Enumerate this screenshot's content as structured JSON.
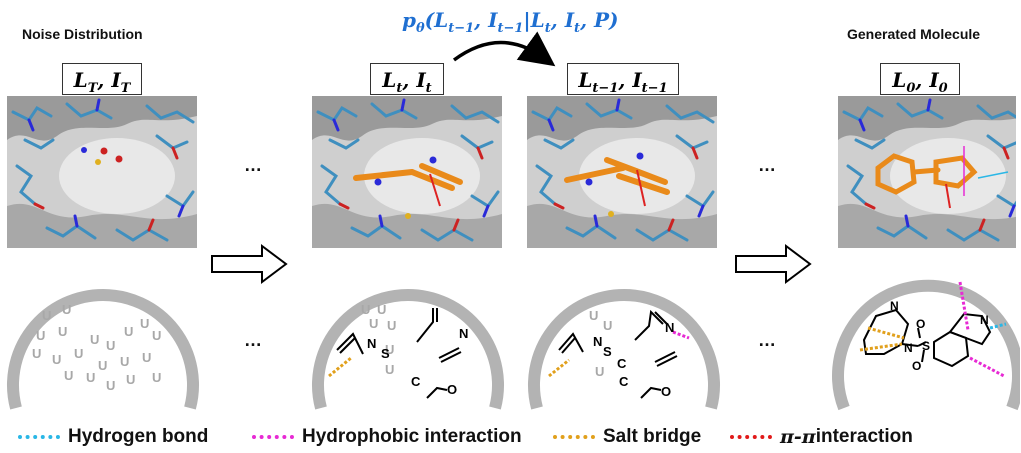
{
  "titles": {
    "noise": "Noise Distribution",
    "generated": "Generated Molecule"
  },
  "states": [
    {
      "L": "L",
      "Ls": "T",
      "I": "I",
      "Is": "T"
    },
    {
      "L": "L",
      "Ls": "t",
      "I": "I",
      "Is": "t"
    },
    {
      "L": "L",
      "Ls": "t−1",
      "I": "I",
      "Is": "t−1"
    },
    {
      "L": "L",
      "Ls": "0",
      "I": "I",
      "Is": "0"
    }
  ],
  "formula": {
    "p": "p",
    "theta": "θ",
    "open": "(",
    "L1": "L",
    "L1s": "t−1",
    "sep1": ", ",
    "I1": "I",
    "I1s": "t−1",
    "bar": "|",
    "L2": "L",
    "L2s": "t",
    "sep2": ", ",
    "I2": "I",
    "I2s": "t",
    "sep3": ", ",
    "P": "P",
    "close": ")"
  },
  "ellipsis": "…",
  "atoms": {
    "N": "N",
    "S": "S",
    "C": "C",
    "O": "O",
    "U": "U"
  },
  "legend": {
    "hydrogen_bond": "Hydrogen bond",
    "hydrophobic": "Hydrophobic interaction",
    "salt_bridge": "Salt bridge",
    "pi": "π-π",
    "pi_suffix": " interaction"
  },
  "colors": {
    "formula_blue": "#1f6fd1",
    "hydrogen_bond": "#2ab7e6",
    "hydrophobic": "#e72ad4",
    "salt_bridge": "#e1a01c",
    "pi_pi": "#e11a1a",
    "ligand_orange": "#e98a1a",
    "protein_stick": "#3f8fbf",
    "arc_gray": "#b3b3b3"
  }
}
